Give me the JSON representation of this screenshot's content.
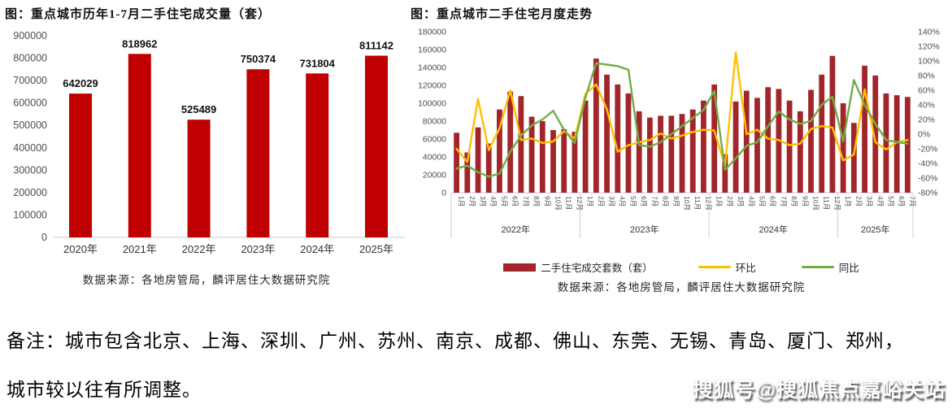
{
  "chart_data": [
    {
      "id": "annual",
      "type": "bar",
      "title": "图：重点城市历年1-7月二手住宅成交量（套）",
      "categories": [
        "2020年",
        "2021年",
        "2022年",
        "2023年",
        "2024年",
        "2025年"
      ],
      "values": [
        642029,
        818962,
        525489,
        750374,
        731804,
        811142
      ],
      "data_labels": [
        "642029",
        "818962",
        "525489",
        "750374",
        "731804",
        "811142"
      ],
      "ylim": [
        0,
        900000
      ],
      "y_ticks": [
        0,
        100000,
        200000,
        300000,
        400000,
        500000,
        600000,
        700000,
        800000,
        900000
      ],
      "grid": "off",
      "bar_color": "#c00000",
      "source": "数据来源：各地房管局，麟评居住大数据研究院"
    },
    {
      "id": "monthly",
      "type": "combo",
      "title": "图：重点城市二手住宅月度走势",
      "month_labels": [
        "1月",
        "2月",
        "3月",
        "4月",
        "5月",
        "6月",
        "7月",
        "8月",
        "9月",
        "10月",
        "11月",
        "12月"
      ],
      "year_groups": [
        {
          "label": "2022年",
          "months": 12
        },
        {
          "label": "2023年",
          "months": 12
        },
        {
          "label": "2024年",
          "months": 12
        },
        {
          "label": "2025年",
          "months": 7
        }
      ],
      "left_ylim": [
        0,
        180000
      ],
      "left_y_ticks": [
        0,
        20000,
        40000,
        60000,
        80000,
        100000,
        120000,
        140000,
        160000,
        180000
      ],
      "right_ylim_pct": [
        -80,
        140
      ],
      "right_y_ticks": [
        "140%",
        "120%",
        "100%",
        "80%",
        "60%",
        "40%",
        "20%",
        "0%",
        "-20%",
        "-40%",
        "-60%",
        "-80%"
      ],
      "grid": "off",
      "legend_position": "bottom",
      "series": [
        {
          "name": "二手住宅成交套数（套）",
          "type": "bar",
          "axis": "left",
          "color": "#a1262b",
          "values": [
            67000,
            45000,
            73000,
            55000,
            93000,
            113000,
            108000,
            85000,
            80000,
            70000,
            71000,
            68000,
            103000,
            150000,
            132000,
            121000,
            111000,
            91000,
            84000,
            86000,
            86000,
            88000,
            93000,
            103000,
            121000,
            43000,
            102000,
            114000,
            106000,
            118000,
            116000,
            103000,
            91000,
            115000,
            132000,
            153000,
            100000,
            78000,
            142000,
            131000,
            111000,
            109000,
            107000
          ]
        },
        {
          "name": "环比",
          "type": "line",
          "axis": "right",
          "color": "#ffc000",
          "values": [
            -20,
            -38,
            48,
            -22,
            8,
            60,
            -8,
            -6,
            -12,
            -10,
            4,
            -6,
            55,
            68,
            34,
            -24,
            -15,
            -11,
            -8,
            1,
            -6,
            -2,
            3,
            6,
            5,
            -44,
            112,
            0,
            6,
            -6,
            -8,
            -15,
            -13,
            7,
            11,
            9,
            -36,
            -28,
            61,
            -11,
            -21,
            -11,
            -8
          ]
        },
        {
          "name": "同比",
          "type": "line",
          "axis": "right",
          "color": "#70ad47",
          "values": [
            -47,
            -43,
            -52,
            -58,
            -54,
            -24,
            -2,
            12,
            20,
            32,
            6,
            -12,
            50,
            97,
            95,
            93,
            88,
            -15,
            -17,
            -11,
            0,
            11,
            22,
            33,
            59,
            -49,
            -33,
            -16,
            -11,
            11,
            31,
            20,
            14,
            18,
            40,
            51,
            -10,
            74,
            40,
            14,
            -8,
            -11,
            -13
          ]
        }
      ],
      "source": "数据来源：各地房管局，麟评居住大数据研究院"
    }
  ],
  "note": {
    "line1": "备注：城市包含北京、上海、深圳、广州、苏州、南京、成都、佛山、东莞、无锡、青岛、厦门、郑州，",
    "line2": "城市较以往有所调整。"
  },
  "watermark": "搜狐号@搜狐焦点嘉峪关站",
  "colors": {
    "annual_bar": "#c00000",
    "monthly_bar": "#a1262b",
    "mom_line": "#ffc000",
    "yoy_line": "#70ad47",
    "axis_text": "#4d4d4d",
    "baseline": "#c9c9c9"
  }
}
